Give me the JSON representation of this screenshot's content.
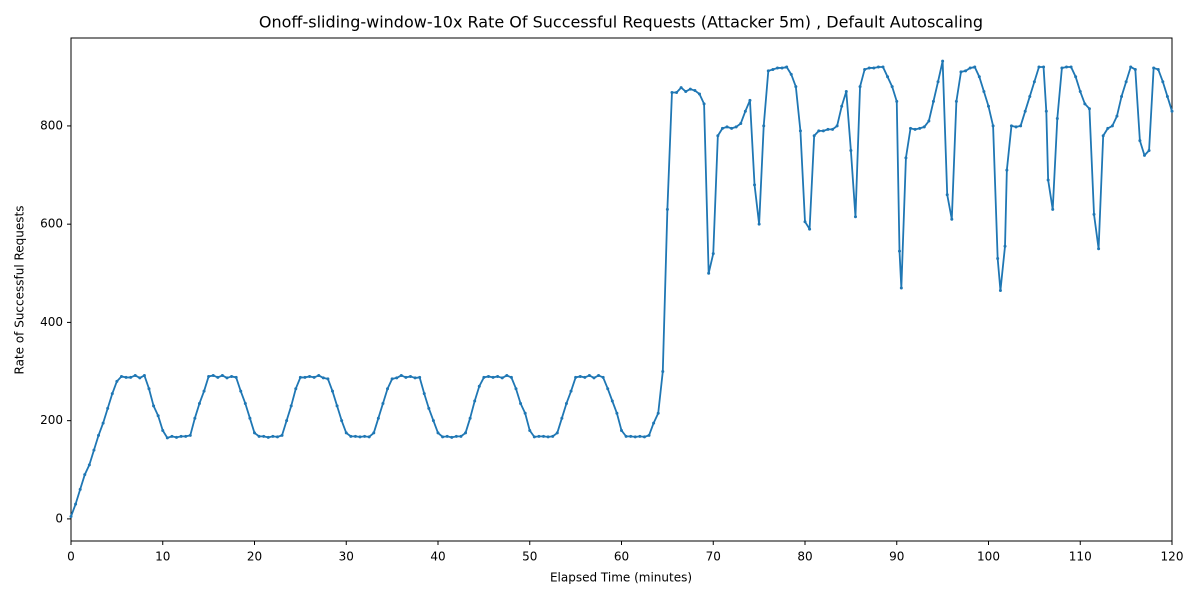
{
  "chart_data": {
    "type": "line",
    "title": "Onoff-sliding-window-10x Rate Of Successful Requests (Attacker 5m) , Default Autoscaling",
    "x_label": "Elapsed Time (minutes)",
    "y_label": "Rate of Successful Requests",
    "xlim": [
      0,
      120
    ],
    "ylim": [
      -45,
      979
    ],
    "xticks": [
      0,
      10,
      20,
      30,
      40,
      50,
      60,
      70,
      80,
      90,
      100,
      110,
      120
    ],
    "yticks": [
      0,
      200,
      400,
      600,
      800
    ],
    "grid": false,
    "x": [
      0,
      0.5,
      1,
      1.5,
      2,
      2.5,
      3,
      3.5,
      4,
      4.5,
      5,
      5.5,
      6,
      6.5,
      7,
      7.5,
      8,
      8.5,
      9,
      9.5,
      10,
      10.5,
      11,
      11.5,
      12,
      12.5,
      13,
      13.5,
      14,
      14.5,
      15,
      15.5,
      16,
      16.5,
      17,
      17.5,
      18,
      18.5,
      19,
      19.5,
      20,
      20.5,
      21,
      21.5,
      22,
      22.5,
      23,
      23.5,
      24,
      24.5,
      25,
      25.5,
      26,
      26.5,
      27,
      27.5,
      28,
      28.5,
      29,
      29.5,
      30,
      30.5,
      31,
      31.5,
      32,
      32.5,
      33,
      33.5,
      34,
      34.5,
      35,
      35.5,
      36,
      36.5,
      37,
      37.5,
      38,
      38.5,
      39,
      39.5,
      40,
      40.5,
      41,
      41.5,
      42,
      42.5,
      43,
      43.5,
      44,
      44.5,
      45,
      45.5,
      46,
      46.5,
      47,
      47.5,
      48,
      48.5,
      49,
      49.5,
      50,
      50.5,
      51,
      51.5,
      52,
      52.5,
      53,
      53.5,
      54,
      54.5,
      55,
      55.5,
      56,
      56.5,
      57,
      57.5,
      58,
      58.5,
      59,
      59.5,
      60,
      60.5,
      61,
      61.5,
      62,
      62.5,
      63,
      63.5,
      64,
      64.5,
      65,
      65.5,
      66,
      66.5,
      67,
      67.5,
      68,
      68.5,
      69,
      69.5,
      70,
      70.5,
      71,
      71.5,
      72,
      72.5,
      73,
      73.5,
      74,
      74.5,
      75,
      75.5,
      76,
      76.5,
      77,
      77.5,
      78,
      78.5,
      79,
      79.5,
      80,
      80.5,
      81,
      81.5,
      82,
      82.5,
      83,
      83.5,
      84,
      84.5,
      85,
      85.5,
      86,
      86.5,
      87,
      87.5,
      88,
      88.5,
      89,
      89.5,
      90,
      90.3,
      90.5,
      91,
      91.5,
      92,
      92.5,
      93,
      93.5,
      94,
      94.5,
      95,
      95.5,
      96,
      96.5,
      97,
      97.5,
      98,
      98.5,
      99,
      99.5,
      100,
      100.5,
      101,
      101.3,
      101.8,
      102,
      102.5,
      103,
      103.5,
      104,
      104.5,
      105,
      105.5,
      106,
      106.3,
      106.5,
      107,
      107.5,
      108,
      108.5,
      109,
      109.5,
      110,
      110.5,
      111,
      111.5,
      112,
      112.5,
      113,
      113.5,
      114,
      114.5,
      115,
      115.5,
      116,
      116.5,
      117,
      117.5,
      118,
      118.5,
      119,
      119.5,
      120
    ],
    "series": [
      {
        "name": "Rate of Successful Requests",
        "color": "#1f77b4",
        "values": [
          5,
          30,
          60,
          90,
          110,
          140,
          170,
          195,
          225,
          255,
          280,
          290,
          288,
          288,
          292,
          287,
          292,
          265,
          230,
          210,
          180,
          165,
          168,
          166,
          168,
          168,
          170,
          205,
          235,
          260,
          290,
          292,
          288,
          292,
          287,
          290,
          288,
          260,
          235,
          205,
          175,
          168,
          168,
          166,
          168,
          167,
          170,
          200,
          230,
          265,
          288,
          288,
          290,
          288,
          292,
          287,
          285,
          260,
          230,
          200,
          175,
          168,
          168,
          167,
          168,
          167,
          175,
          205,
          235,
          265,
          285,
          287,
          292,
          288,
          290,
          287,
          288,
          255,
          225,
          200,
          175,
          167,
          168,
          166,
          168,
          168,
          175,
          205,
          240,
          270,
          288,
          290,
          288,
          290,
          287,
          292,
          288,
          265,
          235,
          215,
          180,
          167,
          168,
          168,
          167,
          168,
          175,
          205,
          235,
          260,
          288,
          290,
          288,
          292,
          287,
          292,
          288,
          265,
          240,
          215,
          180,
          168,
          168,
          167,
          168,
          167,
          170,
          195,
          215,
          300,
          630,
          868,
          868,
          878,
          870,
          875,
          872,
          865,
          845,
          500,
          540,
          780,
          795,
          798,
          795,
          798,
          805,
          830,
          852,
          680,
          600,
          800,
          912,
          915,
          918,
          918,
          920,
          905,
          880,
          790,
          605,
          590,
          780,
          790,
          790,
          793,
          793,
          800,
          840,
          870,
          750,
          615,
          880,
          915,
          918,
          918,
          920,
          920,
          900,
          880,
          850,
          545,
          470,
          735,
          795,
          793,
          795,
          798,
          810,
          850,
          890,
          932,
          660,
          610,
          850,
          910,
          912,
          918,
          920,
          900,
          870,
          840,
          800,
          530,
          465,
          555,
          710,
          800,
          798,
          800,
          830,
          860,
          890,
          920,
          920,
          830,
          690,
          630,
          815,
          918,
          920,
          920,
          900,
          870,
          845,
          835,
          620,
          550,
          780,
          795,
          800,
          820,
          860,
          890,
          920,
          915,
          770,
          740,
          750,
          918,
          915,
          890,
          860,
          830
        ]
      }
    ]
  }
}
